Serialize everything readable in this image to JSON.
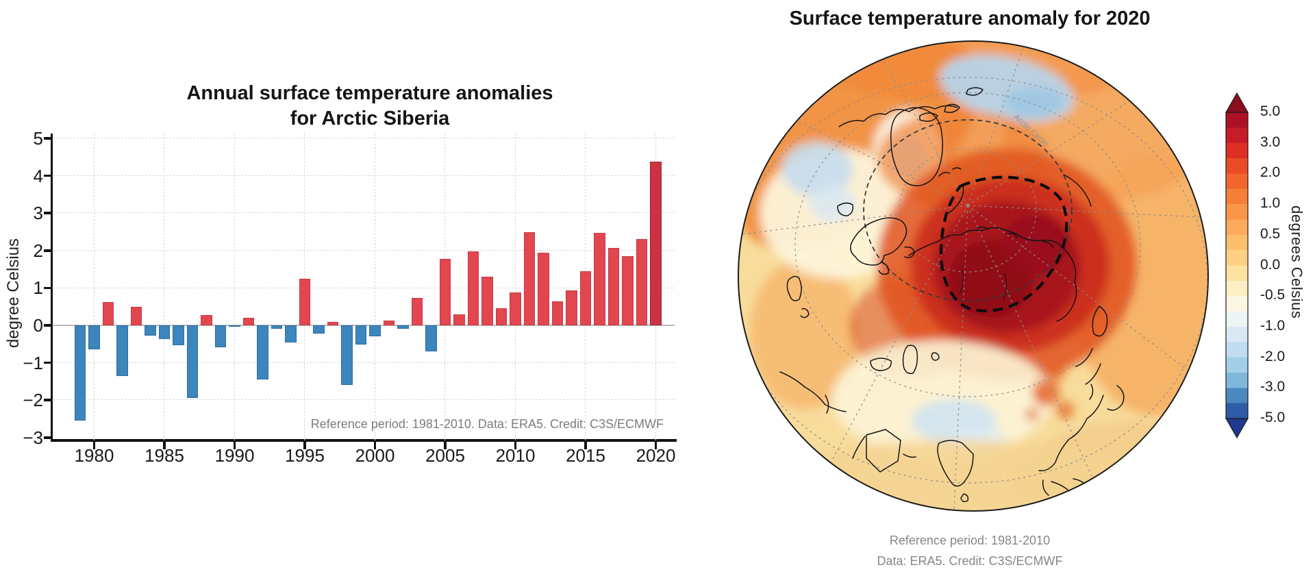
{
  "chart_data": [
    {
      "type": "bar",
      "title": "Annual surface temperature anomalies for Arctic Siberia",
      "title_lines": [
        "Annual surface temperature anomalies",
        "for Arctic Siberia"
      ],
      "xlabel": "",
      "ylabel": "degree Celsius",
      "annotation": "Reference period: 1981-2010. Data: ERA5. Credit: C3S/ECMWF",
      "x": [
        1979,
        1980,
        1981,
        1982,
        1983,
        1984,
        1985,
        1986,
        1987,
        1988,
        1989,
        1990,
        1991,
        1992,
        1993,
        1994,
        1995,
        1996,
        1997,
        1998,
        1999,
        2000,
        2001,
        2002,
        2003,
        2004,
        2005,
        2006,
        2007,
        2008,
        2009,
        2010,
        2011,
        2012,
        2013,
        2014,
        2015,
        2016,
        2017,
        2018,
        2019,
        2020
      ],
      "values": [
        -2.55,
        -0.65,
        0.63,
        -1.35,
        0.5,
        -0.28,
        -0.37,
        -0.53,
        -1.94,
        0.27,
        -0.58,
        -0.03,
        0.2,
        -1.45,
        -0.1,
        -0.46,
        1.25,
        -0.22,
        0.1,
        -1.6,
        -0.52,
        -0.3,
        0.12,
        -0.1,
        0.73,
        -0.7,
        1.77,
        0.3,
        1.97,
        1.3,
        0.46,
        0.87,
        2.5,
        1.95,
        0.65,
        0.94,
        1.45,
        2.47,
        2.07,
        1.85,
        2.3,
        4.38
      ],
      "xticks": [
        1980,
        1985,
        1990,
        1995,
        2000,
        2005,
        2010,
        2015,
        2020
      ],
      "xtick_labels": [
        "1980",
        "1985",
        "1990",
        "1995",
        "2000",
        "2005",
        "2010",
        "2015",
        "2020"
      ],
      "yticks": [
        5,
        4,
        3,
        2,
        1,
        0,
        -1,
        -2,
        -3
      ],
      "ytick_labels": [
        "5",
        "4",
        "3",
        "2",
        "1",
        "0",
        "−1",
        "−2",
        "−3"
      ],
      "ylim": [
        -3.1,
        5.15
      ],
      "xlim": [
        1977,
        2021.3
      ],
      "grid": true,
      "legend": "none",
      "bar_color_positive": "#e2474f",
      "bar_color_negative": "#3d85bd",
      "highlight_year": 2020,
      "bar_color_highlight": "#cb3343",
      "bar_border_highlight": "#a1painted"
    },
    {
      "type": "heatmap",
      "subtype": "polar-globe-map",
      "title": "Surface temperature anomaly for 2020",
      "caption": [
        "Reference period: 1981-2010",
        "Data: ERA5. Credit: C3S/ECMWF"
      ],
      "annotations": [
        "Arctic Circle"
      ],
      "colorbar_label": "degrees Celsius",
      "colorbar_ticks": [
        "5.0",
        "3.0",
        "2.0",
        "1.0",
        "0.5",
        "0.0",
        "-0.5",
        "-1.0",
        "-2.0",
        "-3.0",
        "-5.0"
      ],
      "colorbar_colors": [
        "#ad1126",
        "#c51d2a",
        "#dd2f23",
        "#e94c25",
        "#f1662c",
        "#f57f37",
        "#f99648",
        "#fbab5b",
        "#fcbf6e",
        "#fdd184",
        "#fee2a2",
        "#fdefc3",
        "#fbf7e2",
        "#edf4f4",
        "#d8e9f4",
        "#bfddef",
        "#a2cfe7",
        "#7fb8db",
        "#4a88bf",
        "#2f5ca6"
      ],
      "colorbar_arrow_top": "#8c0d1d",
      "colorbar_arrow_bottom": "#1f3a8c",
      "map_accent_colors": {
        "hot_core": "#8d0c18",
        "hot": "#a7131f",
        "warm": "#f5a254",
        "neutral": "#fbf0d2",
        "cool": "#c6ddee"
      }
    }
  ]
}
